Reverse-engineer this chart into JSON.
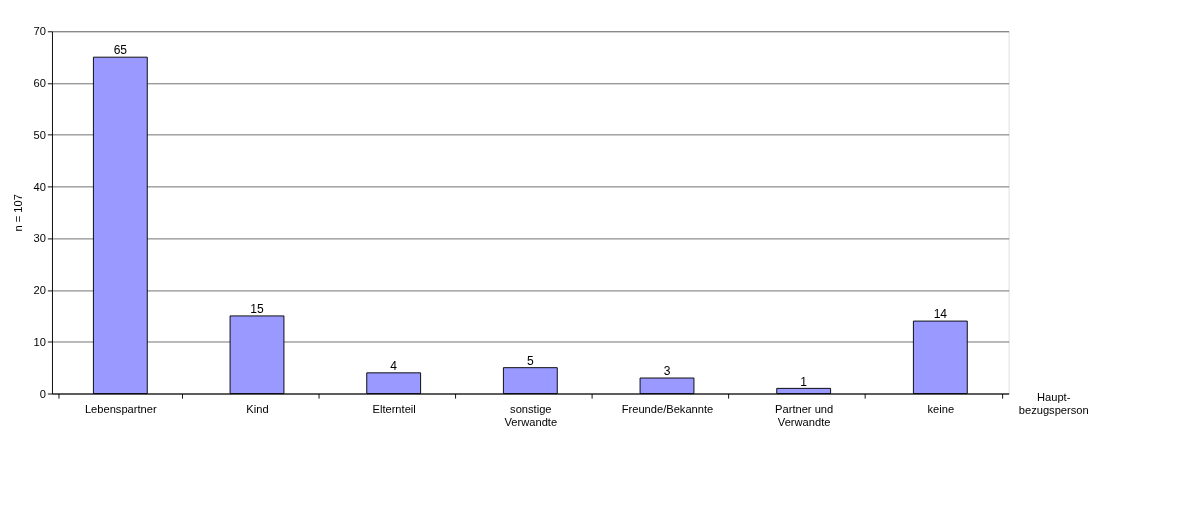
{
  "chart_data": {
    "type": "bar",
    "ylabel": "n = 107",
    "xlabel": "Haupt-\nbezugsperson",
    "categories": [
      "Lebenspartner",
      "Kind",
      "Elternteil",
      "sonstige\nVerwandte",
      "Freunde/Bekannte",
      "Partner und\nVerwandte",
      "keine"
    ],
    "values": [
      65,
      15,
      4,
      5,
      3,
      1,
      14
    ],
    "color": "#9999ff",
    "ylim": [
      0,
      70
    ],
    "yticks": [
      0,
      10,
      20,
      30,
      40,
      50,
      60,
      70
    ],
    "grid": "y",
    "data_labels": true
  }
}
